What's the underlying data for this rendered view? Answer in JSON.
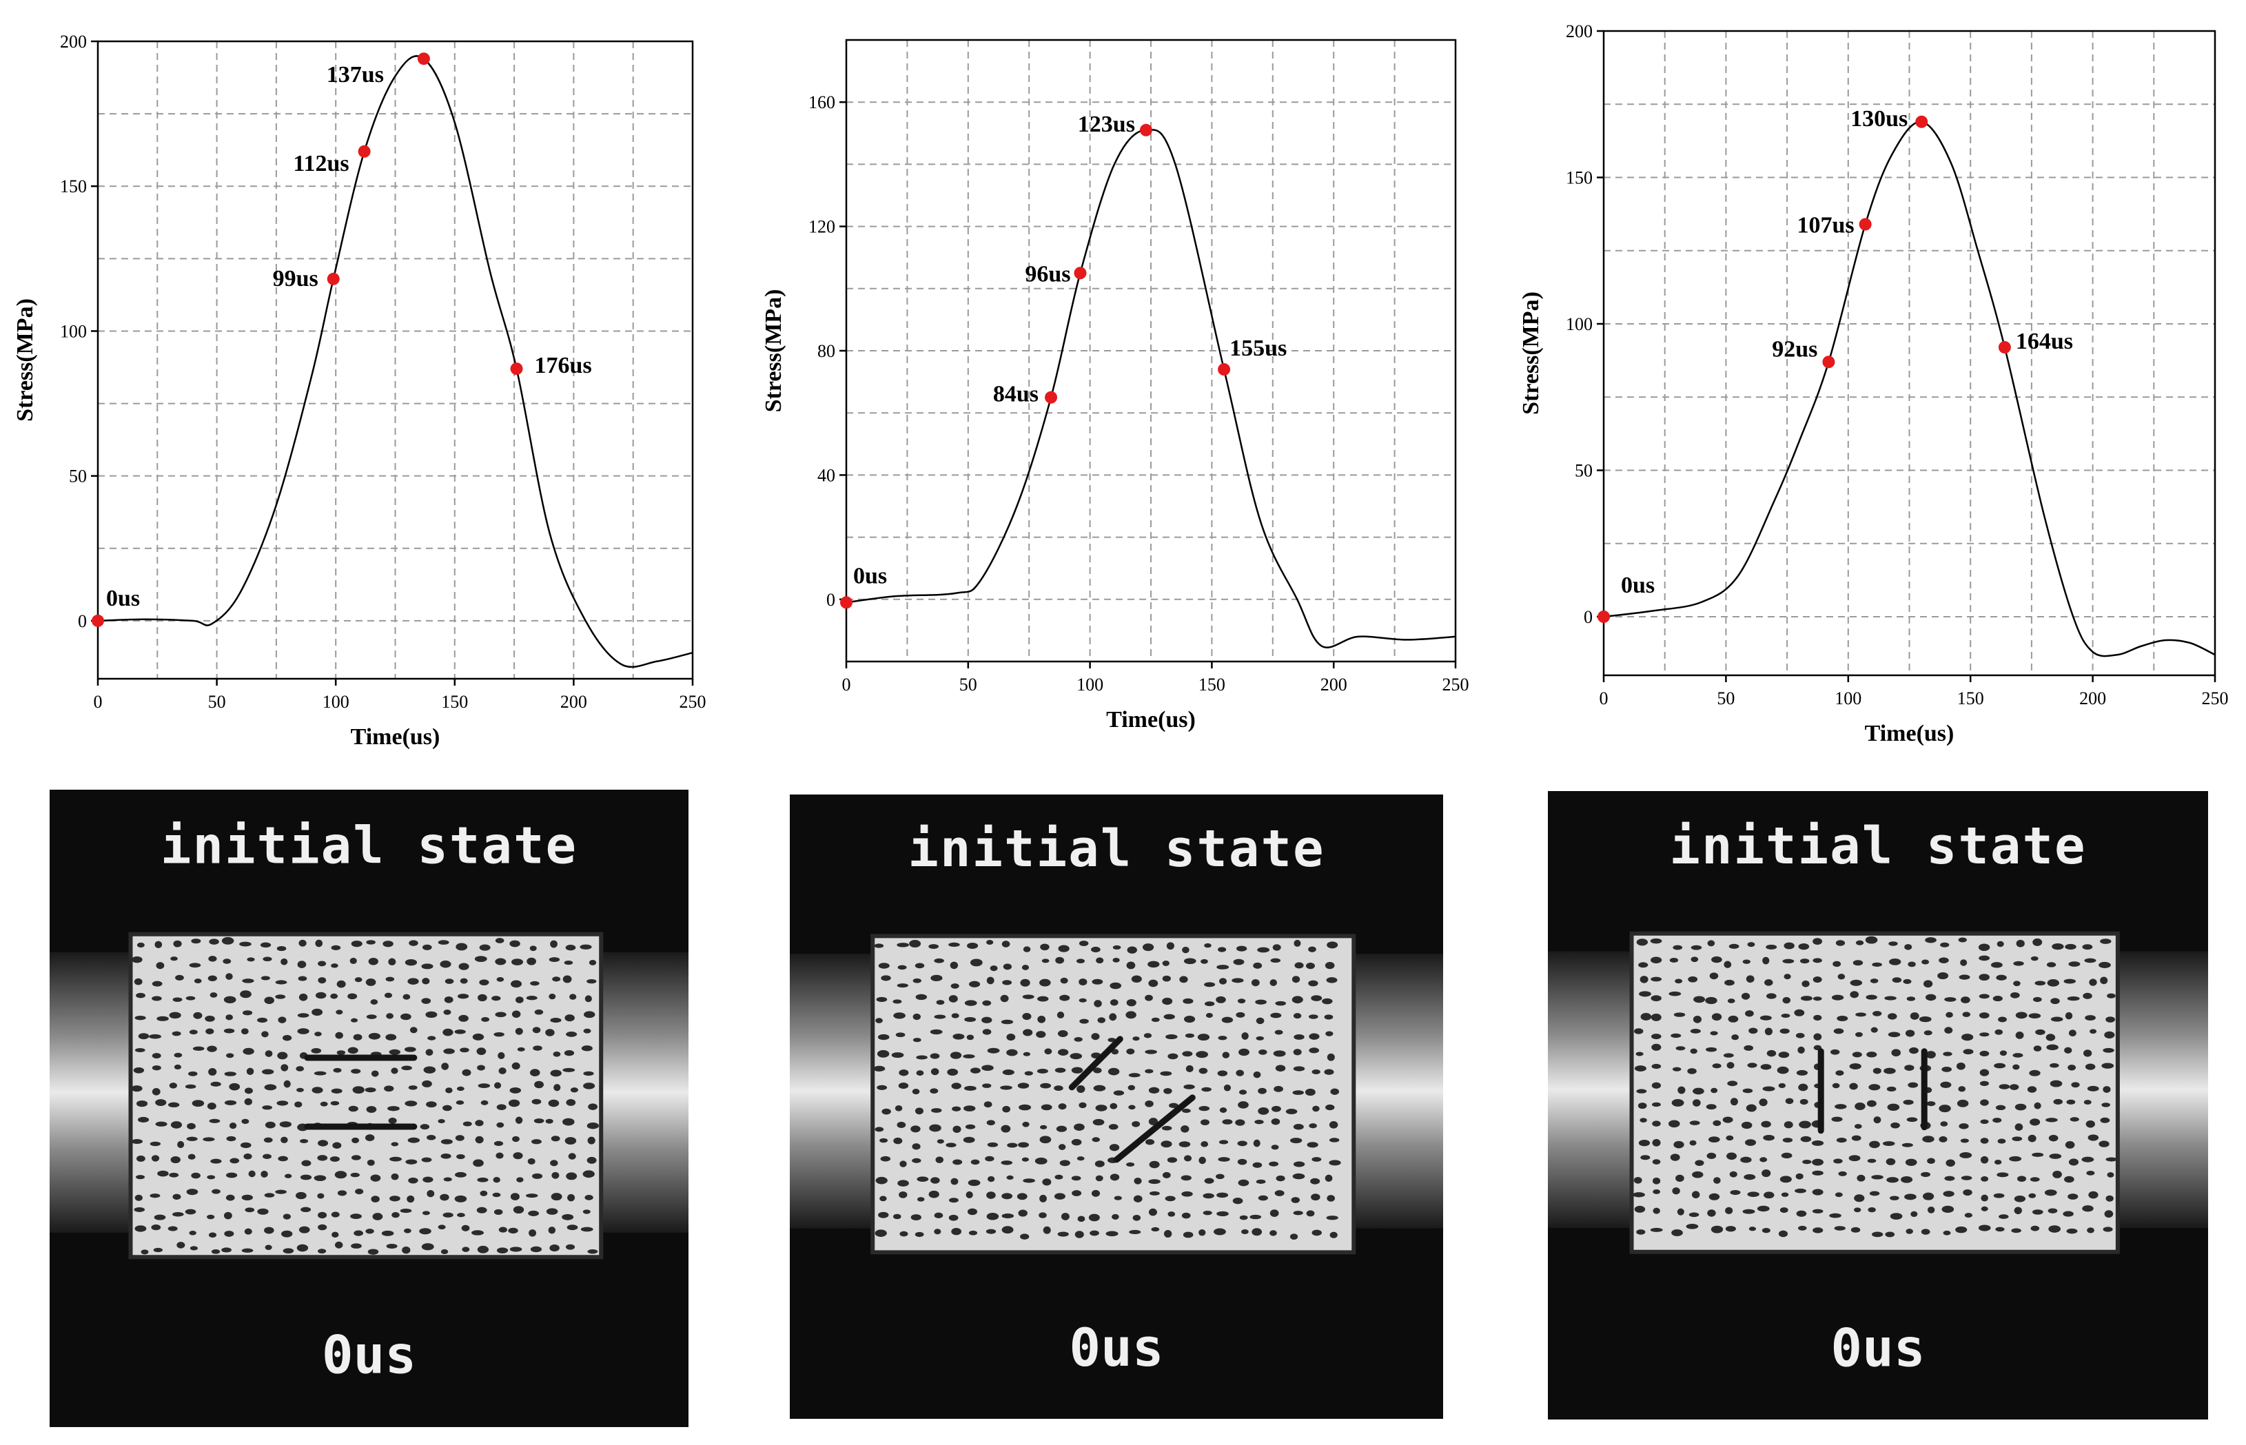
{
  "chart_data": [
    {
      "type": "line",
      "xlabel": "Time(us)",
      "ylabel": "Stress(MPa)",
      "xlim": [
        0,
        250
      ],
      "ylim": [
        -20,
        200
      ],
      "xticks": [
        0,
        50,
        100,
        150,
        200,
        250
      ],
      "yticks": [
        0,
        50,
        100,
        150,
        200
      ],
      "grid": true,
      "series": [
        {
          "name": "stress",
          "x": [
            0,
            20,
            40,
            48,
            60,
            75,
            90,
            99,
            112,
            125,
            137,
            150,
            165,
            176,
            190,
            205,
            220,
            235,
            250
          ],
          "y": [
            0,
            0.5,
            0,
            -1,
            10,
            40,
            85,
            118,
            162,
            188,
            194,
            172,
            120,
            87,
            30,
            0,
            -15,
            -14,
            -11
          ]
        }
      ],
      "points": [
        {
          "x": 0,
          "y": 0,
          "label": "0us"
        },
        {
          "x": 99,
          "y": 118,
          "label": "99us"
        },
        {
          "x": 112,
          "y": 162,
          "label": "112us"
        },
        {
          "x": 137,
          "y": 194,
          "label": "137us"
        },
        {
          "x": 176,
          "y": 87,
          "label": "176us"
        }
      ]
    },
    {
      "type": "line",
      "xlabel": "Time(us)",
      "ylabel": "Stress(MPa)",
      "xlim": [
        0,
        250
      ],
      "ylim": [
        -20,
        180
      ],
      "xticks": [
        0,
        50,
        100,
        150,
        200,
        250
      ],
      "yticks": [
        0,
        40,
        80,
        120,
        160
      ],
      "grid": true,
      "series": [
        {
          "name": "stress",
          "x": [
            0,
            20,
            45,
            55,
            70,
            84,
            96,
            110,
            123,
            135,
            155,
            170,
            185,
            195,
            210,
            230,
            250
          ],
          "y": [
            -1,
            1,
            2,
            6,
            30,
            65,
            105,
            140,
            151,
            140,
            74,
            25,
            0,
            -15,
            -12,
            -13,
            -12
          ]
        }
      ],
      "points": [
        {
          "x": 0,
          "y": -1,
          "label": "0us"
        },
        {
          "x": 84,
          "y": 65,
          "label": "84us"
        },
        {
          "x": 96,
          "y": 105,
          "label": "96us"
        },
        {
          "x": 123,
          "y": 151,
          "label": "123us"
        },
        {
          "x": 155,
          "y": 74,
          "label": "155us"
        }
      ]
    },
    {
      "type": "line",
      "xlabel": "Time(us)",
      "ylabel": "Stress(MPa)",
      "xlim": [
        0,
        250
      ],
      "ylim": [
        -20,
        200
      ],
      "xticks": [
        0,
        50,
        100,
        150,
        200,
        250
      ],
      "yticks": [
        0,
        50,
        100,
        150,
        200
      ],
      "grid": true,
      "series": [
        {
          "name": "stress",
          "x": [
            0,
            20,
            40,
            55,
            70,
            80,
            92,
            107,
            118,
            130,
            142,
            153,
            164,
            180,
            192,
            200,
            210,
            220,
            230,
            240,
            250
          ],
          "y": [
            0,
            2,
            5,
            14,
            40,
            60,
            87,
            134,
            158,
            169,
            155,
            125,
            92,
            35,
            0,
            -12,
            -13,
            -10,
            -8,
            -9,
            -13
          ]
        }
      ],
      "points": [
        {
          "x": 0,
          "y": 0,
          "label": "0us"
        },
        {
          "x": 92,
          "y": 87,
          "label": "92us"
        },
        {
          "x": 107,
          "y": 134,
          "label": "107us"
        },
        {
          "x": 130,
          "y": 169,
          "label": "130us"
        },
        {
          "x": 164,
          "y": 92,
          "label": "164us"
        }
      ]
    }
  ],
  "photos": [
    {
      "title": "initial state",
      "time": "0us",
      "flaw": "horizontal"
    },
    {
      "title": "initial state",
      "time": "0us",
      "flaw": "inclined"
    },
    {
      "title": "initial state",
      "time": "0us",
      "flaw": "vertical"
    }
  ],
  "colors": {
    "curve": "#000000",
    "marker": "#e41a1c",
    "grid": "#9a9a9a"
  }
}
